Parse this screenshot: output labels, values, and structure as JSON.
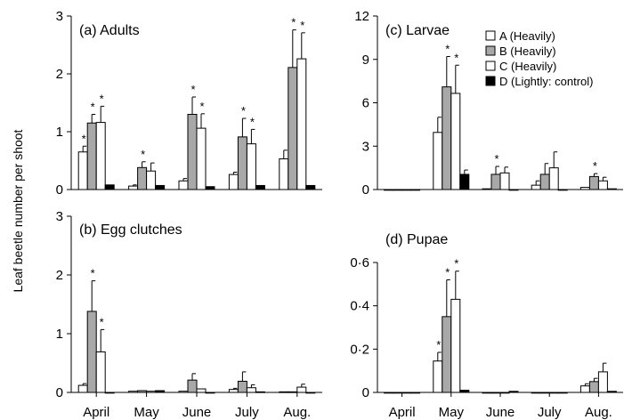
{
  "figure": {
    "ylabel": "Leaf beetle number per shoot",
    "months": [
      "April",
      "May",
      "June",
      "July",
      "Aug."
    ]
  },
  "legend": [
    {
      "name": "A (Heavily)",
      "color": "#ffffff"
    },
    {
      "name": "B (Heavily)",
      "color": "#a8a8a8"
    },
    {
      "name": "C (Heavily)",
      "color": "#ffffff"
    },
    {
      "name": "D (Lightly: control)",
      "color": "#000000"
    }
  ],
  "chart_data": [
    {
      "type": "bar",
      "title": "(a) Adults",
      "categories": [
        "April",
        "May",
        "June",
        "July",
        "Aug."
      ],
      "ylim": [
        0,
        3
      ],
      "yticks": [
        "0",
        "1",
        "2",
        "3"
      ],
      "series": [
        {
          "name": "A (Heavily)",
          "values": [
            0.65,
            0.06,
            0.15,
            0.26,
            0.53
          ],
          "errors": [
            0.1,
            0.02,
            0.04,
            0.04,
            0.15
          ],
          "stars": [
            true,
            false,
            false,
            false,
            false
          ]
        },
        {
          "name": "B (Heavily)",
          "values": [
            1.15,
            0.38,
            1.3,
            0.91,
            2.11
          ],
          "errors": [
            0.15,
            0.1,
            0.3,
            0.32,
            0.65
          ],
          "stars": [
            true,
            true,
            true,
            true,
            true
          ]
        },
        {
          "name": "C (Heavily)",
          "values": [
            1.16,
            0.32,
            1.06,
            0.79,
            2.26
          ],
          "errors": [
            0.28,
            0.14,
            0.25,
            0.25,
            0.45
          ],
          "stars": [
            true,
            false,
            true,
            true,
            true
          ]
        },
        {
          "name": "D (Lightly: control)",
          "values": [
            0.08,
            0.07,
            0.05,
            0.07,
            0.07
          ],
          "errors": [
            0,
            0,
            0,
            0,
            0
          ],
          "stars": [
            false,
            false,
            false,
            false,
            false
          ]
        }
      ]
    },
    {
      "type": "bar",
      "title": "(c) Larvae",
      "categories": [
        "April",
        "May",
        "June",
        "July",
        "Aug."
      ],
      "ylim": [
        0,
        12
      ],
      "yticks": [
        "0",
        "3",
        "6",
        "9",
        "12"
      ],
      "series": [
        {
          "name": "A (Heavily)",
          "values": [
            0,
            3.95,
            0.05,
            0.3,
            0.15
          ],
          "errors": [
            0,
            1.05,
            0,
            0.3,
            0
          ],
          "stars": [
            false,
            false,
            false,
            false,
            false
          ]
        },
        {
          "name": "B (Heavily)",
          "values": [
            0,
            7.1,
            1.05,
            1.05,
            0.9
          ],
          "errors": [
            0,
            2.1,
            0.55,
            0.75,
            0.2
          ],
          "stars": [
            false,
            true,
            true,
            false,
            true
          ]
        },
        {
          "name": "C (Heavily)",
          "values": [
            0,
            6.65,
            1.15,
            1.5,
            0.6
          ],
          "errors": [
            0,
            1.95,
            0.4,
            1.1,
            0.25
          ],
          "stars": [
            false,
            true,
            false,
            false,
            false
          ]
        },
        {
          "name": "D (Lightly: control)",
          "values": [
            0,
            1.05,
            0,
            0,
            0.05
          ],
          "errors": [
            0,
            0.3,
            0,
            0,
            0
          ],
          "stars": [
            false,
            false,
            false,
            false,
            false
          ]
        }
      ]
    },
    {
      "type": "bar",
      "title": "(b) Egg clutches",
      "categories": [
        "April",
        "May",
        "June",
        "July",
        "Aug."
      ],
      "ylim": [
        0,
        3
      ],
      "yticks": [
        "0",
        "1",
        "2",
        "3"
      ],
      "series": [
        {
          "name": "A (Heavily)",
          "values": [
            0.12,
            0.02,
            0.02,
            0.05,
            0.01
          ],
          "errors": [
            0.03,
            0,
            0,
            0.02,
            0
          ],
          "stars": [
            false,
            false,
            false,
            false,
            false
          ]
        },
        {
          "name": "B (Heavily)",
          "values": [
            1.38,
            0.03,
            0.21,
            0.19,
            0.01
          ],
          "errors": [
            0.52,
            0,
            0.11,
            0.16,
            0
          ],
          "stars": [
            true,
            false,
            false,
            false,
            false
          ]
        },
        {
          "name": "C (Heavily)",
          "values": [
            0.69,
            0.02,
            0.06,
            0.08,
            0.09
          ],
          "errors": [
            0.38,
            0,
            0,
            0.05,
            0.05
          ],
          "stars": [
            true,
            false,
            false,
            false,
            false
          ]
        },
        {
          "name": "D (Lightly: control)",
          "values": [
            0,
            0.03,
            0,
            0.01,
            0
          ],
          "errors": [
            0,
            0,
            0,
            0,
            0
          ],
          "stars": [
            false,
            false,
            false,
            false,
            false
          ]
        }
      ]
    },
    {
      "type": "bar",
      "title": "(d) Pupae",
      "categories": [
        "April",
        "May",
        "June",
        "July",
        "Aug."
      ],
      "ylim": [
        0,
        0.6
      ],
      "yticks": [
        "0",
        "0·2",
        "0·4",
        "0·6"
      ],
      "series": [
        {
          "name": "A (Heavily)",
          "values": [
            0,
            0.145,
            0,
            0,
            0.03
          ],
          "errors": [
            0,
            0.04,
            0,
            0,
            0.01
          ],
          "stars": [
            false,
            true,
            false,
            false,
            false
          ]
        },
        {
          "name": "B (Heavily)",
          "values": [
            0,
            0.35,
            0,
            0,
            0.05
          ],
          "errors": [
            0,
            0.17,
            0,
            0,
            0.015
          ],
          "stars": [
            false,
            true,
            false,
            false,
            false
          ]
        },
        {
          "name": "C (Heavily)",
          "values": [
            0,
            0.43,
            0,
            0,
            0.095
          ],
          "errors": [
            0,
            0.13,
            0,
            0,
            0.04
          ],
          "stars": [
            false,
            true,
            false,
            false,
            false
          ]
        },
        {
          "name": "D (Lightly: control)",
          "values": [
            0,
            0.01,
            0.005,
            0,
            0.005
          ],
          "errors": [
            0,
            0,
            0,
            0,
            0
          ],
          "stars": [
            false,
            false,
            false,
            false,
            false
          ]
        }
      ]
    }
  ]
}
